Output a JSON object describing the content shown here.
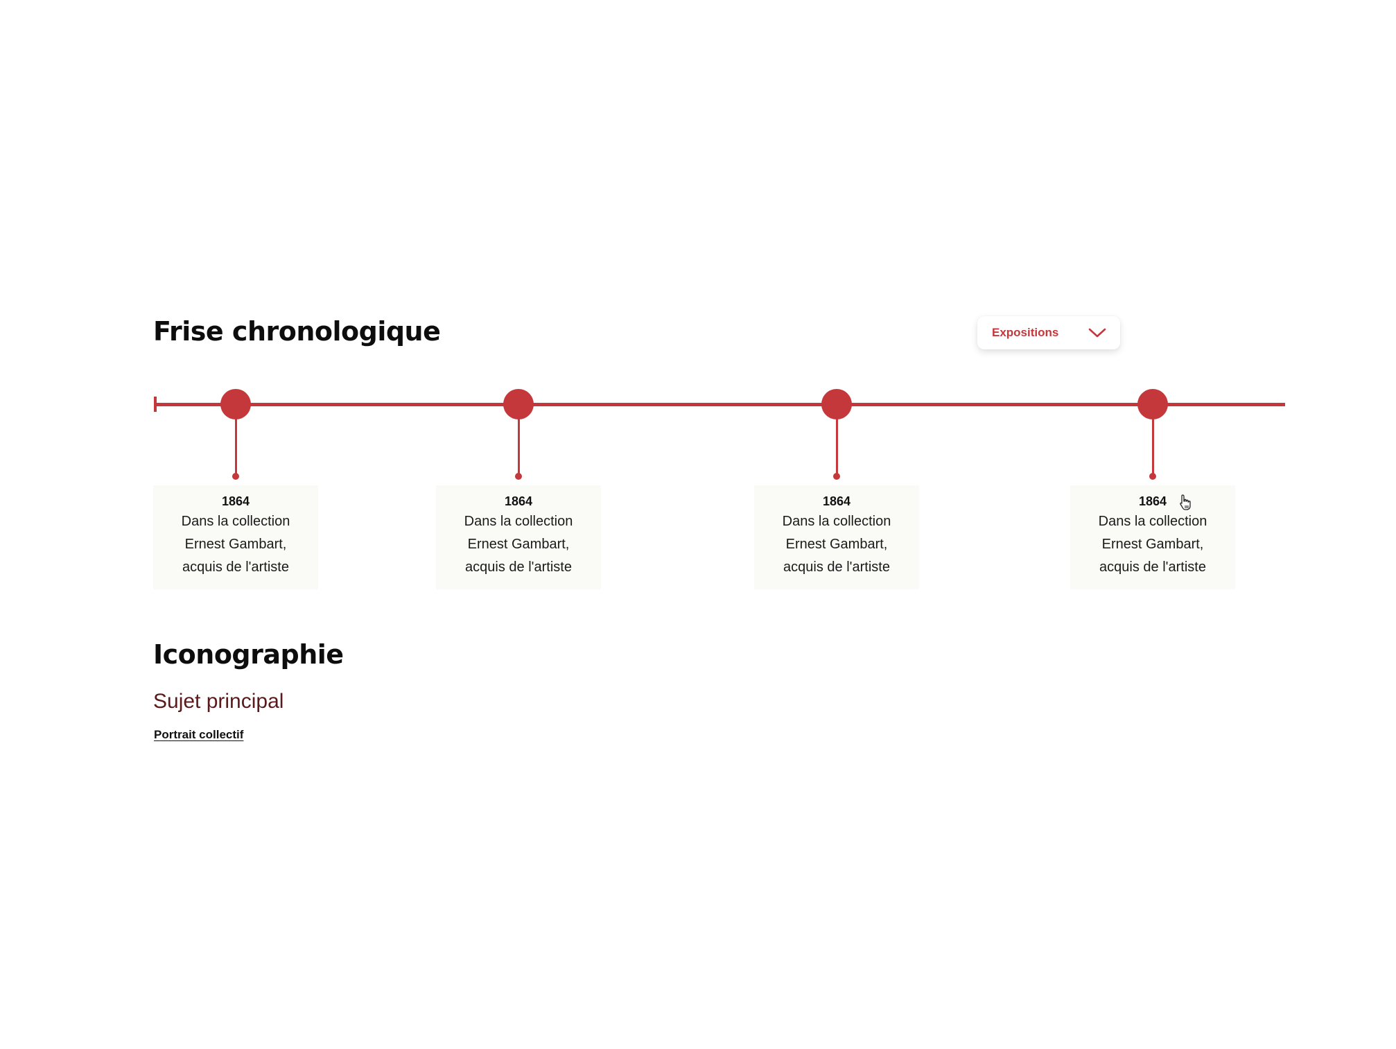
{
  "timeline_section": {
    "title": "Frise chronologique",
    "filter": {
      "selected": "Expositions",
      "icon": "chevron-down-icon"
    },
    "events": [
      {
        "year": "1864",
        "text": "Dans la collection Ernest Gambart, acquis de l'artiste"
      },
      {
        "year": "1864",
        "text": "Dans la collection Ernest Gambart, acquis de l'artiste"
      },
      {
        "year": "1864",
        "text": "Dans la collection Ernest Gambart, acquis de l'artiste"
      },
      {
        "year": "1864",
        "text": "Dans la collection Ernest Gambart, acquis de l'artiste"
      }
    ]
  },
  "iconography_section": {
    "title": "Iconographie",
    "subheading": "Sujet principal",
    "tag": "Portrait collectif"
  },
  "colors": {
    "accent": "#c4373a",
    "subheading": "#5a1a1c",
    "card_background": "#fafbf6"
  }
}
